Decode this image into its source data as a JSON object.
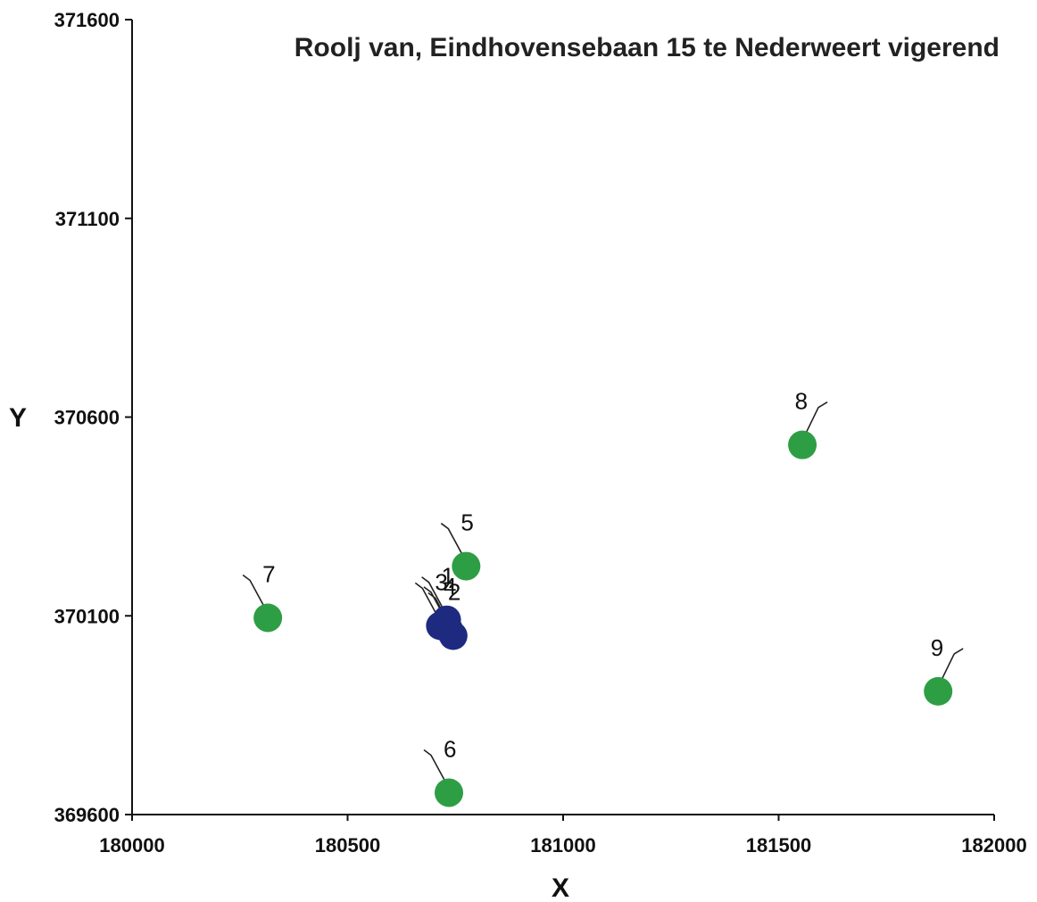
{
  "chart_data": {
    "type": "scatter",
    "title": "Roolj van, Eindhovensebaan 15 te Nederweert vigerend",
    "xlabel": "X",
    "ylabel": "Y",
    "xlim": [
      180000,
      182000
    ],
    "ylim": [
      369600,
      371600
    ],
    "x_ticks": [
      "180000",
      "180500",
      "181000",
      "181500",
      "182000"
    ],
    "y_ticks": [
      "369600",
      "370100",
      "370600",
      "371100",
      "371600"
    ],
    "grid": false,
    "colors": {
      "blue": "#1d2a80",
      "green": "#2e9e44",
      "axis": "#111111"
    },
    "series": [
      {
        "color": "blue",
        "points": [
          {
            "label": "1",
            "x": 180730,
            "y": 370090
          },
          {
            "label": "2",
            "x": 180745,
            "y": 370050
          },
          {
            "label": "3",
            "x": 180715,
            "y": 370075
          },
          {
            "label": "4",
            "x": 180735,
            "y": 370065
          }
        ]
      },
      {
        "color": "green",
        "points": [
          {
            "label": "5",
            "x": 180775,
            "y": 370225
          },
          {
            "label": "6",
            "x": 180735,
            "y": 369655
          },
          {
            "label": "7",
            "x": 180315,
            "y": 370095
          },
          {
            "label": "8",
            "x": 181555,
            "y": 370530
          },
          {
            "label": "9",
            "x": 181870,
            "y": 369910
          }
        ]
      }
    ]
  }
}
